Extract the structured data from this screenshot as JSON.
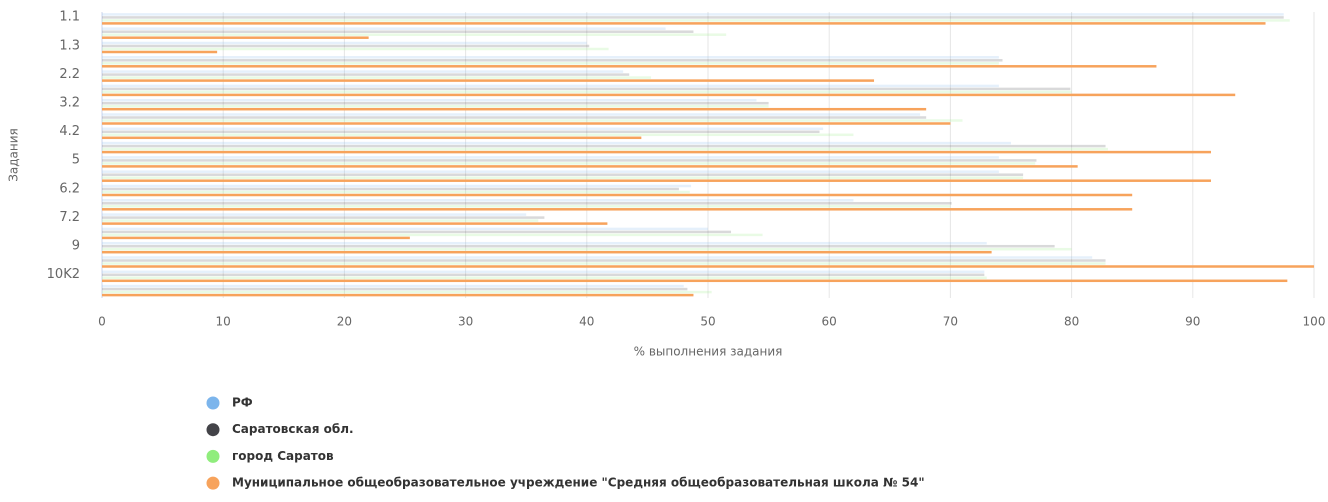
{
  "chart_data": {
    "type": "bar",
    "orientation": "horizontal",
    "x_axis_title": "% выполнения задания",
    "y_axis_title": "Задания",
    "categories": [
      "1.1",
      null,
      "1.3",
      null,
      "2.2",
      null,
      "3.2",
      null,
      "4.2",
      null,
      "5",
      null,
      "6.2",
      null,
      "7.2",
      null,
      "9",
      null,
      "10K2",
      null
    ],
    "series": [
      {
        "name": "РФ",
        "color": "#7cb5ec",
        "values": [
          97.5,
          46.5,
          40,
          74,
          43,
          74,
          54,
          67.5,
          59.5,
          75,
          74,
          74,
          48.6,
          62,
          35,
          50,
          73,
          81.7,
          72.8,
          48
        ]
      },
      {
        "name": "Саратовская обл.",
        "color": "#434348",
        "values": [
          97.5,
          48.8,
          40.2,
          74.3,
          43.5,
          79.9,
          55,
          68,
          59.2,
          82.8,
          77.1,
          76,
          47.6,
          70.1,
          36.5,
          51.9,
          78.6,
          82.8,
          72.8,
          48.3
        ]
      },
      {
        "name": "город Саратов",
        "color": "#90ed7d",
        "values": [
          98,
          51.5,
          41.8,
          74,
          45.3,
          80,
          55,
          71,
          62,
          83,
          77,
          76,
          48.5,
          70,
          36,
          54.5,
          80,
          82.8,
          73,
          50.3
        ]
      },
      {
        "name": "Муниципальное общеобразовательное учреждение \"Средняя общеобразовательная школа № 54\"",
        "color": "#f7a35c",
        "values": [
          96,
          22,
          9.5,
          87,
          63.7,
          93.5,
          68,
          70,
          44.5,
          91.5,
          80.5,
          91.5,
          85,
          85,
          41.7,
          25.4,
          73.4,
          100,
          97.8,
          48.8
        ]
      }
    ],
    "xlim": [
      0,
      100
    ],
    "xticks": [
      0,
      10,
      20,
      30,
      40,
      50,
      60,
      70,
      80,
      90,
      100
    ],
    "grid": true
  }
}
